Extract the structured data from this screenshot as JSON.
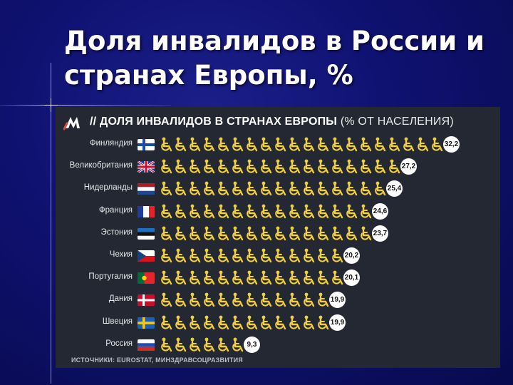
{
  "slide": {
    "title": "Доля инвалидов в России и странах Европы, %"
  },
  "chart_data": {
    "type": "bar",
    "title": "// ДОЛЯ ИНВАЛИДОВ В СТРАНАХ ЕВРОПЫ",
    "subtitle": "(% ОТ НАСЕЛЕНИЯ)",
    "source": "ИСТОЧНИКИ: EUROSTAT, МИНЗДРАВСОЦРАЗВИТИЯ",
    "orientation": "horizontal",
    "categories": [
      "Финляндия",
      "Великобритания",
      "Нидерланды",
      "Франция",
      "Эстония",
      "Чехия",
      "Португалия",
      "Дания",
      "Швеция",
      "Россия"
    ],
    "values": [
      32.2,
      27.2,
      25.4,
      24.6,
      23.7,
      20.2,
      20.1,
      19.9,
      19.9,
      9.3
    ],
    "value_labels": [
      "32,2",
      "27,2",
      "25,4",
      "24,6",
      "23,7",
      "20,2",
      "20,1",
      "19,9",
      "19,9",
      "9,3"
    ],
    "flags": [
      "finland",
      "uk",
      "netherlands",
      "france",
      "estonia",
      "czechia",
      "portugal",
      "denmark",
      "sweden",
      "russia"
    ],
    "icon": "wheelchair-icon",
    "colors": {
      "icon": "#f2cf3d",
      "panel": "#242833",
      "label_bubble": "#ffffff"
    }
  }
}
